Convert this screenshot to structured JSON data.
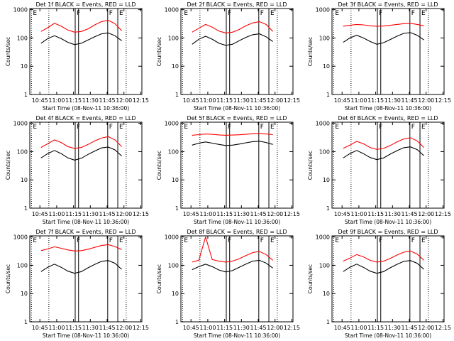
{
  "common": {
    "ylabel": "Counts/sec",
    "xlabel": "Start Time (08-Nov-11 10:36:00)",
    "x_ticks": [
      "10:45",
      "11:00",
      "11:15",
      "11:30",
      "11:45",
      "12:00",
      "12:15"
    ],
    "x_tick_minutes": [
      645,
      660,
      675,
      690,
      705,
      720,
      735
    ],
    "xlim_minutes": [
      636,
      736
    ],
    "y_ticks": [
      "1",
      "10",
      "100",
      "1000"
    ],
    "y_tick_values": [
      1,
      10,
      100,
      1000
    ],
    "ylim": [
      1,
      1100
    ],
    "scale": "log",
    "markers": [
      {
        "label": "E",
        "minute": 637.5,
        "style": "dotted"
      },
      {
        "label": "F",
        "minute": 676.5,
        "style": "solid"
      },
      {
        "label": "",
        "minute": 679.5,
        "style": "solid"
      },
      {
        "label": "F",
        "minute": 705.5,
        "style": "solid"
      },
      {
        "label": "E",
        "minute": 714.5,
        "style": "solid"
      },
      {
        "label": "",
        "minute": 653,
        "style": "dotted"
      },
      {
        "label": "",
        "minute": 722,
        "style": "dotted"
      }
    ],
    "colors": {
      "events": "#000000",
      "lld": "#ff0000"
    }
  },
  "chart_data": [
    {
      "type": "line",
      "title": "Det 1f BLACK = Events, RED = LLD",
      "x": [
        646,
        652,
        658,
        664,
        670,
        676,
        682,
        688,
        694,
        700,
        706,
        712,
        718
      ],
      "series": [
        {
          "name": "BLACK = Events",
          "values": [
            65,
            95,
            120,
            95,
            70,
            58,
            65,
            85,
            110,
            140,
            150,
            120,
            80
          ]
        },
        {
          "name": "RED = LLD",
          "values": [
            170,
            230,
            330,
            260,
            190,
            160,
            170,
            210,
            290,
            380,
            420,
            320,
            180
          ]
        }
      ]
    },
    {
      "type": "line",
      "title": "Det 2f BLACK = Events, RED = LLD",
      "x": [
        646,
        652,
        658,
        664,
        670,
        676,
        682,
        688,
        694,
        700,
        706,
        712,
        718
      ],
      "series": [
        {
          "name": "BLACK = Events",
          "values": [
            60,
            90,
            115,
            90,
            65,
            55,
            60,
            80,
            105,
            130,
            140,
            110,
            75
          ]
        },
        {
          "name": "RED = LLD",
          "values": [
            160,
            220,
            300,
            240,
            175,
            150,
            160,
            200,
            270,
            340,
            380,
            300,
            170
          ]
        }
      ]
    },
    {
      "type": "line",
      "title": "Det 3f BLACK = Events, RED = LLD",
      "x": [
        646,
        652,
        658,
        664,
        670,
        676,
        682,
        688,
        694,
        700,
        706,
        712,
        718
      ],
      "series": [
        {
          "name": "BLACK = Events",
          "values": [
            70,
            100,
            125,
            100,
            75,
            60,
            68,
            88,
            115,
            145,
            155,
            125,
            85
          ]
        },
        {
          "name": "RED = LLD",
          "values": [
            260,
            280,
            300,
            290,
            270,
            260,
            265,
            280,
            300,
            320,
            330,
            300,
            270
          ]
        }
      ]
    },
    {
      "type": "line",
      "title": "Det 4f BLACK = Events, RED = LLD",
      "x": [
        646,
        652,
        658,
        664,
        670,
        676,
        682,
        688,
        694,
        700,
        706,
        712,
        718
      ],
      "series": [
        {
          "name": "BLACK = Events",
          "values": [
            60,
            85,
            110,
            85,
            60,
            50,
            58,
            80,
            105,
            135,
            145,
            115,
            70
          ]
        },
        {
          "name": "RED = LLD",
          "values": [
            140,
            190,
            260,
            210,
            150,
            130,
            140,
            180,
            240,
            300,
            340,
            260,
            150
          ]
        }
      ]
    },
    {
      "type": "line",
      "title": "Det 5f BLACK = Events, RED = LLD",
      "x": [
        646,
        652,
        658,
        664,
        670,
        676,
        682,
        688,
        694,
        700,
        706,
        712,
        718
      ],
      "series": [
        {
          "name": "BLACK = Events",
          "values": [
            170,
            200,
            220,
            200,
            180,
            165,
            170,
            185,
            205,
            225,
            235,
            210,
            180
          ]
        },
        {
          "name": "RED = LLD",
          "values": [
            380,
            400,
            420,
            410,
            390,
            380,
            385,
            395,
            410,
            430,
            440,
            420,
            400
          ]
        }
      ]
    },
    {
      "type": "line",
      "title": "Det 6f BLACK = Events, RED = LLD",
      "x": [
        646,
        652,
        658,
        664,
        670,
        676,
        682,
        688,
        694,
        700,
        706,
        712,
        718
      ],
      "series": [
        {
          "name": "BLACK = Events",
          "values": [
            60,
            85,
            110,
            85,
            62,
            52,
            60,
            82,
            108,
            138,
            148,
            118,
            72
          ]
        },
        {
          "name": "RED = LLD",
          "values": [
            130,
            170,
            230,
            190,
            140,
            120,
            130,
            165,
            220,
            280,
            310,
            240,
            140
          ]
        }
      ]
    },
    {
      "type": "line",
      "title": "Det 7f BLACK = Events, RED = LLD",
      "x": [
        646,
        652,
        658,
        664,
        670,
        676,
        682,
        688,
        694,
        700,
        706,
        712,
        718
      ],
      "series": [
        {
          "name": "BLACK = Events",
          "values": [
            60,
            85,
            110,
            85,
            62,
            52,
            60,
            82,
            108,
            138,
            148,
            118,
            72
          ]
        },
        {
          "name": "RED = LLD",
          "values": [
            330,
            380,
            450,
            400,
            350,
            320,
            330,
            370,
            430,
            500,
            540,
            460,
            360
          ]
        }
      ]
    },
    {
      "type": "line",
      "title": "Det 8f BLACK = Events, RED = LLD",
      "x": [
        646,
        652,
        658,
        664,
        670,
        676,
        682,
        688,
        694,
        700,
        706,
        712,
        718
      ],
      "series": [
        {
          "name": "BLACK = Events",
          "values": [
            70,
            90,
            110,
            90,
            68,
            58,
            65,
            85,
            110,
            140,
            150,
            120,
            80
          ]
        },
        {
          "name": "RED = LLD",
          "values": [
            130,
            150,
            1000,
            160,
            140,
            130,
            140,
            170,
            220,
            280,
            310,
            240,
            150
          ]
        }
      ]
    },
    {
      "type": "line",
      "title": "Det 9f BLACK = Events, RED = LLD",
      "x": [
        646,
        652,
        658,
        664,
        670,
        676,
        682,
        688,
        694,
        700,
        706,
        712,
        718
      ],
      "series": [
        {
          "name": "BLACK = Events",
          "values": [
            60,
            85,
            110,
            85,
            62,
            52,
            60,
            82,
            108,
            138,
            148,
            118,
            72
          ]
        },
        {
          "name": "RED = LLD",
          "values": [
            140,
            180,
            240,
            200,
            150,
            130,
            140,
            175,
            230,
            290,
            320,
            250,
            150
          ]
        }
      ]
    }
  ]
}
